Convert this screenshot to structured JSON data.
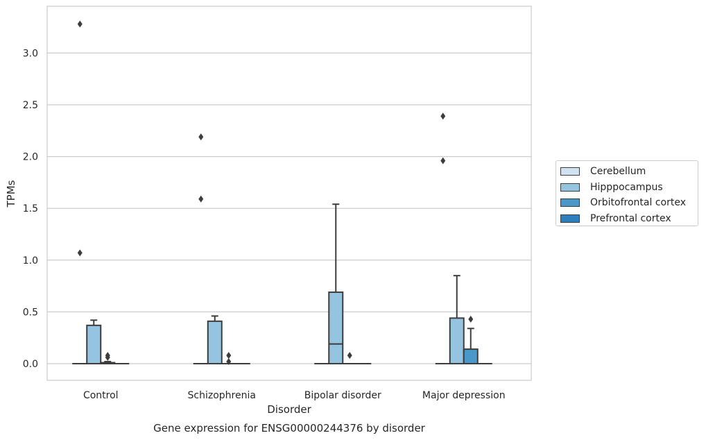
{
  "chart_data": {
    "type": "box",
    "caption": "Gene expression for ENSG00000244376 by disorder",
    "xlabel": "Disorder",
    "ylabel": "TPMs",
    "ylim": [
      -0.16,
      3.46
    ],
    "yticks": [
      "0.0",
      "0.5",
      "1.0",
      "1.5",
      "2.0",
      "2.5",
      "3.0"
    ],
    "ytick_values": [
      0,
      0.5,
      1.0,
      1.5,
      2.0,
      2.5,
      3.0
    ],
    "grid": "horizontal",
    "legend_position": "right-center",
    "categories": [
      "Control",
      "Schizophrenia",
      "Bipolar disorder",
      "Major depression"
    ],
    "series": [
      {
        "name": "Cerebellum",
        "color": "#d0e1f2",
        "boxes": [
          {
            "q1": 0,
            "median": 0,
            "q3": 0,
            "whisker_low": 0,
            "whisker_high": 0,
            "outliers": [
              1.07,
              3.28
            ]
          },
          {
            "q1": 0,
            "median": 0,
            "q3": 0,
            "whisker_low": 0,
            "whisker_high": 0,
            "outliers": [
              1.59,
              2.19
            ]
          },
          {
            "q1": 0,
            "median": 0,
            "q3": 0,
            "whisker_low": 0,
            "whisker_high": 0,
            "outliers": []
          },
          {
            "q1": 0,
            "median": 0,
            "q3": 0,
            "whisker_low": 0,
            "whisker_high": 0,
            "outliers": [
              1.96,
              2.39
            ]
          }
        ]
      },
      {
        "name": "Hipppocampus",
        "color": "#94c4df",
        "boxes": [
          {
            "q1": 0,
            "median": 0,
            "q3": 0.37,
            "whisker_low": 0,
            "whisker_high": 0.42,
            "outliers": []
          },
          {
            "q1": 0,
            "median": 0,
            "q3": 0.41,
            "whisker_low": 0,
            "whisker_high": 0.46,
            "outliers": []
          },
          {
            "q1": 0,
            "median": 0.19,
            "q3": 0.69,
            "whisker_low": 0,
            "whisker_high": 1.54,
            "outliers": []
          },
          {
            "q1": 0,
            "median": 0,
            "q3": 0.44,
            "whisker_low": 0,
            "whisker_high": 0.85,
            "outliers": []
          }
        ]
      },
      {
        "name": "Orbitofrontal cortex",
        "color": "#4a98c9",
        "boxes": [
          {
            "q1": 0,
            "median": 0,
            "q3": 0.01,
            "whisker_low": 0,
            "whisker_high": 0.02,
            "outliers": [
              0.06,
              0.08
            ]
          },
          {
            "q1": 0,
            "median": 0,
            "q3": 0,
            "whisker_low": 0,
            "whisker_high": 0,
            "outliers": [
              0.02,
              0.08
            ]
          },
          {
            "q1": 0,
            "median": 0,
            "q3": 0,
            "whisker_low": 0,
            "whisker_high": 0,
            "outliers": [
              0.08
            ]
          },
          {
            "q1": 0,
            "median": 0,
            "q3": 0.14,
            "whisker_low": 0,
            "whisker_high": 0.34,
            "outliers": [
              0.43
            ]
          }
        ]
      },
      {
        "name": "Prefrontal cortex",
        "color": "#2e7ebc",
        "boxes": [
          {
            "q1": 0,
            "median": 0,
            "q3": 0,
            "whisker_low": 0,
            "whisker_high": 0,
            "outliers": []
          },
          {
            "q1": 0,
            "median": 0,
            "q3": 0,
            "whisker_low": 0,
            "whisker_high": 0,
            "outliers": []
          },
          {
            "q1": 0,
            "median": 0,
            "q3": 0,
            "whisker_low": 0,
            "whisker_high": 0,
            "outliers": []
          },
          {
            "q1": 0,
            "median": 0,
            "q3": 0,
            "whisker_low": 0,
            "whisker_high": 0,
            "outliers": []
          }
        ]
      }
    ]
  }
}
